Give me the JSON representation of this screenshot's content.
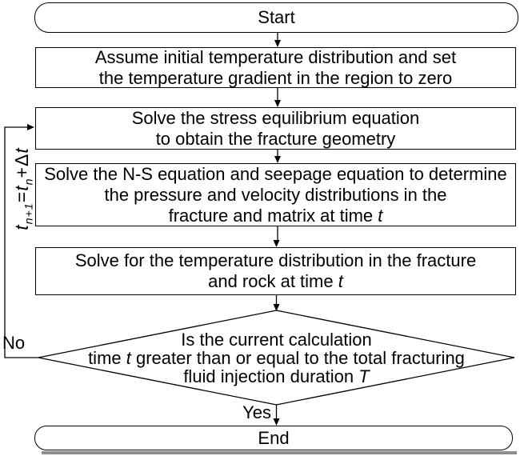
{
  "flowchart": {
    "start_label": "Start",
    "end_label": "End",
    "steps": [
      {
        "name": "assume-initial-temperature",
        "lines": [
          [
            {
              "t": "Assume initial temperature distribution and set"
            }
          ],
          [
            {
              "t": "the temperature gradient in the region to zero"
            }
          ]
        ]
      },
      {
        "name": "solve-stress-equilibrium",
        "lines": [
          [
            {
              "t": "Solve the stress equilibrium equation"
            }
          ],
          [
            {
              "t": "to obtain the fracture geometry"
            }
          ]
        ]
      },
      {
        "name": "solve-ns-seepage",
        "lines": [
          [
            {
              "t": "Solve the N-S equation and seepage equation to determine"
            }
          ],
          [
            {
              "t": "the pressure and velocity distributions in the"
            }
          ],
          [
            {
              "t": "fracture and matrix at time "
            },
            {
              "t": "t",
              "i": true
            }
          ]
        ]
      },
      {
        "name": "solve-temperature",
        "lines": [
          [
            {
              "t": "Solve for the temperature distribution in the fracture"
            }
          ],
          [
            {
              "t": "and rock at time "
            },
            {
              "t": "t",
              "i": true
            }
          ]
        ]
      }
    ],
    "decision": {
      "lines": [
        [
          {
            "t": "Is the current calculation"
          }
        ],
        [
          {
            "t": "time "
          },
          {
            "t": "t",
            "i": true
          },
          {
            "t": " greater than or equal to the total fracturing"
          }
        ],
        [
          {
            "t": "fluid injection duration "
          },
          {
            "t": "T",
            "i": true
          }
        ]
      ]
    },
    "edge_labels": {
      "no": "No",
      "yes": "Yes"
    },
    "loop_label": [
      {
        "t": "t",
        "i": true
      },
      {
        "t": "n+1",
        "i": true,
        "sub": true
      },
      {
        "t": "="
      },
      {
        "t": "t",
        "i": true
      },
      {
        "t": "n",
        "i": true,
        "sub": true
      },
      {
        "t": "+Δ"
      },
      {
        "t": "t",
        "i": true
      }
    ],
    "colors": {
      "line": "#000000",
      "box_bg": "#ffffff",
      "shadow": "#8e8e8e"
    }
  }
}
